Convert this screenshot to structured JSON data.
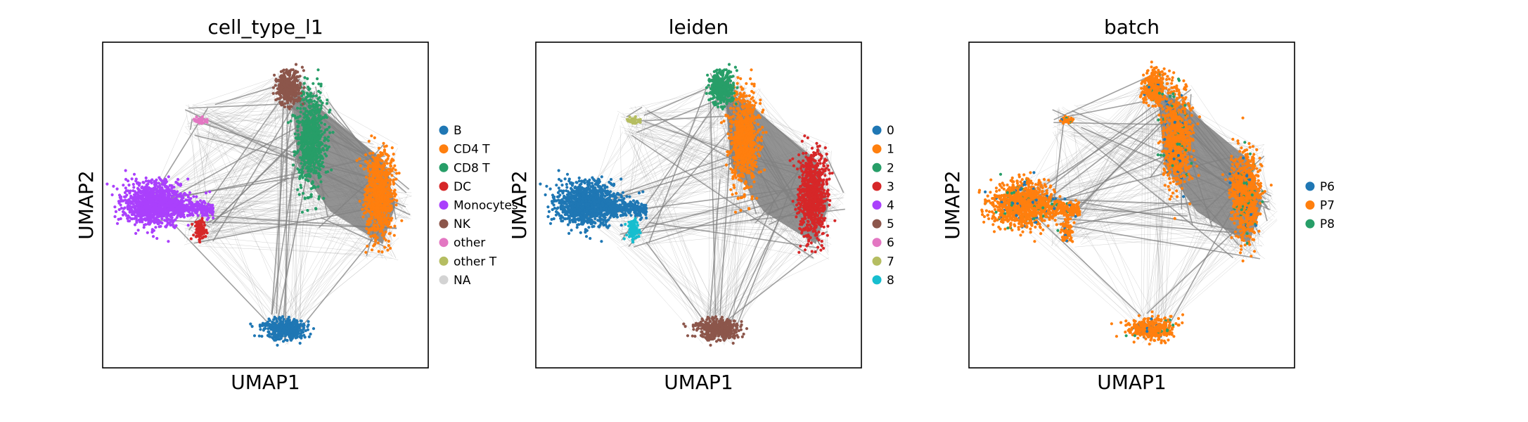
{
  "chart_data": [
    {
      "type": "scatter",
      "subtype": "umap-embedding-with-paga-graph",
      "title": "cell_type_l1",
      "xlabel": "UMAP1",
      "ylabel": "UMAP2",
      "ticks": false,
      "grid": false,
      "edges_color": "#808080",
      "legend_position": "right",
      "legend": [
        {
          "label": "B",
          "color": "#1f77b4"
        },
        {
          "label": "CD4 T",
          "color": "#ff7f0e"
        },
        {
          "label": "CD8 T",
          "color": "#279e68"
        },
        {
          "label": "DC",
          "color": "#d62728"
        },
        {
          "label": "Monocytes",
          "color": "#aa40fc"
        },
        {
          "label": "NK",
          "color": "#8c564b"
        },
        {
          "label": "other",
          "color": "#e377c2"
        },
        {
          "label": "other T",
          "color": "#b5bd61"
        },
        {
          "label": "NA",
          "color": "#d3d3d3"
        }
      ],
      "clusters": [
        {
          "label": "B",
          "cx": 0.56,
          "cy": 0.12
        },
        {
          "label": "CD4 T",
          "cx": 0.85,
          "cy": 0.53
        },
        {
          "label": "CD8 T",
          "cx": 0.64,
          "cy": 0.7
        },
        {
          "label": "DC",
          "cx": 0.3,
          "cy": 0.42
        },
        {
          "label": "Monocytes",
          "cx": 0.16,
          "cy": 0.5
        },
        {
          "label": "NK",
          "cx": 0.57,
          "cy": 0.86
        },
        {
          "label": "other",
          "cx": 0.3,
          "cy": 0.76
        },
        {
          "label": "other T",
          "cx": 0.8,
          "cy": 0.65
        }
      ]
    },
    {
      "type": "scatter",
      "subtype": "umap-embedding-with-paga-graph",
      "title": "leiden",
      "xlabel": "UMAP1",
      "ylabel": "UMAP2",
      "ticks": false,
      "grid": false,
      "edges_color": "#808080",
      "legend_position": "right",
      "legend": [
        {
          "label": "0",
          "color": "#1f77b4"
        },
        {
          "label": "1",
          "color": "#ff7f0e"
        },
        {
          "label": "2",
          "color": "#279e68"
        },
        {
          "label": "3",
          "color": "#d62728"
        },
        {
          "label": "4",
          "color": "#aa40fc"
        },
        {
          "label": "5",
          "color": "#8c564b"
        },
        {
          "label": "6",
          "color": "#e377c2"
        },
        {
          "label": "7",
          "color": "#b5bd61"
        },
        {
          "label": "8",
          "color": "#17becf"
        }
      ],
      "clusters": [
        {
          "label": "0",
          "cx": 0.16,
          "cy": 0.5
        },
        {
          "label": "1",
          "cx": 0.64,
          "cy": 0.7
        },
        {
          "label": "2",
          "cx": 0.57,
          "cy": 0.86
        },
        {
          "label": "3",
          "cx": 0.88,
          "cy": 0.52
        },
        {
          "label": "4",
          "cx": 0.84,
          "cy": 0.41
        },
        {
          "label": "5",
          "cx": 0.56,
          "cy": 0.12
        },
        {
          "label": "6",
          "cx": 0.36,
          "cy": 0.48
        },
        {
          "label": "7",
          "cx": 0.3,
          "cy": 0.76
        },
        {
          "label": "8",
          "cx": 0.35,
          "cy": 0.33
        }
      ]
    },
    {
      "type": "scatter",
      "subtype": "umap-embedding-with-paga-graph",
      "title": "batch",
      "xlabel": "UMAP1",
      "ylabel": "UMAP2",
      "ticks": false,
      "grid": false,
      "edges_color": "#808080",
      "legend_position": "right",
      "legend": [
        {
          "label": "P6",
          "color": "#1f77b4"
        },
        {
          "label": "P7",
          "color": "#ff7f0e"
        },
        {
          "label": "P8",
          "color": "#279e68"
        }
      ],
      "clusters": [
        {
          "label": "P7",
          "cx": 0.16,
          "cy": 0.5
        },
        {
          "label": "P7",
          "cx": 0.61,
          "cy": 0.7
        },
        {
          "label": "P7",
          "cx": 0.57,
          "cy": 0.86
        },
        {
          "label": "P7",
          "cx": 0.84,
          "cy": 0.48
        },
        {
          "label": "P7",
          "cx": 0.56,
          "cy": 0.12
        },
        {
          "label": "P7",
          "cx": 0.3,
          "cy": 0.76
        }
      ]
    }
  ]
}
